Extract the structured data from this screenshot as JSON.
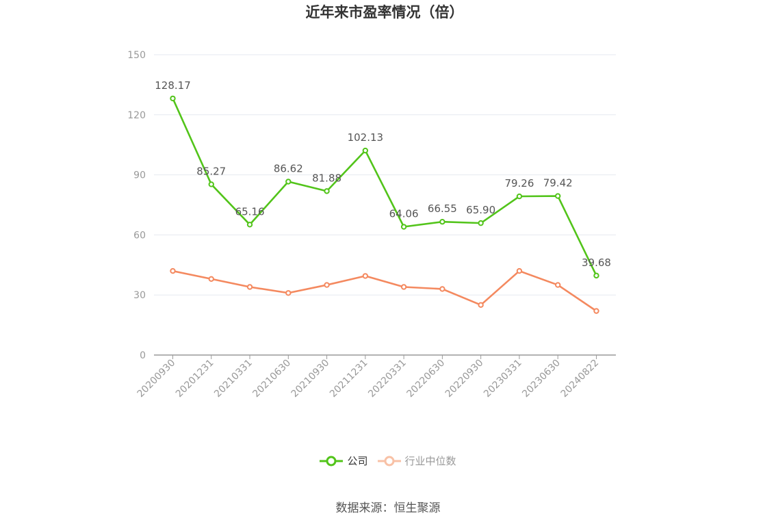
{
  "chart_data": {
    "type": "line",
    "title": "近年来市盈率情况（倍）",
    "xlabel": "",
    "ylabel": "",
    "ylim": [
      0,
      150
    ],
    "yticks": [
      0,
      30,
      60,
      90,
      120,
      150
    ],
    "grid": true,
    "legend_position": "bottom",
    "categories": [
      "20200930",
      "20201231",
      "20210331",
      "20210630",
      "20210930",
      "20211231",
      "20220331",
      "20220630",
      "20220930",
      "20230331",
      "20230630",
      "20240822"
    ],
    "series": [
      {
        "name": "公司",
        "color": "#52c41a",
        "values": [
          128.17,
          85.27,
          65.16,
          86.62,
          81.88,
          102.13,
          64.06,
          66.55,
          65.9,
          79.26,
          79.42,
          39.68
        ],
        "labels": [
          "128.17",
          "85.27",
          "65.16",
          "86.62",
          "81.88",
          "102.13",
          "64.06",
          "66.55",
          "65.90",
          "79.26",
          "79.42",
          "39.68"
        ]
      },
      {
        "name": "行业中位数",
        "color": "#f4895f",
        "values": [
          42.0,
          38.0,
          34.0,
          31.0,
          35.0,
          39.5,
          34.0,
          33.0,
          25.0,
          42.0,
          35.0,
          22.0
        ]
      }
    ]
  },
  "legend": {
    "company_label": "公司",
    "industry_label": "行业中位数"
  },
  "source": "数据来源：恒生聚源"
}
